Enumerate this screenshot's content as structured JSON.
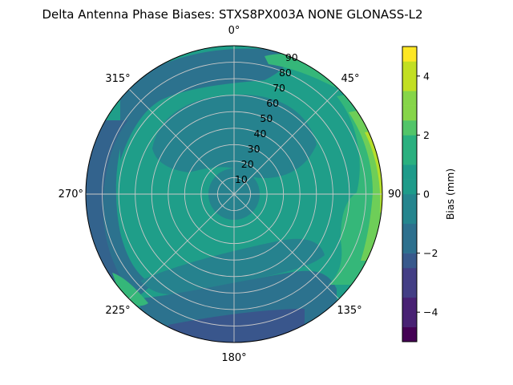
{
  "chart_data": {
    "type": "polar-contour",
    "title": "Delta Antenna Phase Biases: STXS8PX003A     NONE GLONASS-L2",
    "angular_tick_labels": [
      "0°",
      "45°",
      "90°",
      "135°",
      "180°",
      "225°",
      "270°",
      "315°"
    ],
    "radial_tick_labels": [
      "10",
      "20",
      "30",
      "40",
      "50",
      "60",
      "70",
      "80",
      "90"
    ],
    "radial_range": [
      0,
      90
    ],
    "grid": true,
    "colorbar": {
      "label": "Bias (mm)",
      "range": [
        -5,
        5
      ],
      "tick_labels": [
        "−4",
        "−2",
        "0",
        "2",
        "4"
      ],
      "levels": [
        -5,
        -4.5,
        -4,
        -3.5,
        -3,
        -2.5,
        -2,
        -1.5,
        -1,
        -0.5,
        0,
        0.5,
        1,
        1.5,
        2,
        2.5,
        3,
        3.5,
        4,
        4.5,
        5
      ],
      "colormap": "viridis"
    },
    "regions": [
      {
        "name": "background",
        "band": [
          0,
          0.5
        ],
        "color": "#1f9e89"
      },
      {
        "name": "center-ring",
        "band": [
          -0.5,
          0
        ],
        "color": "#26828e"
      },
      {
        "name": "north-mid-ring",
        "band": [
          -0.5,
          0
        ],
        "color": "#26828e"
      },
      {
        "name": "north-outer",
        "band": [
          -1,
          -0.5
        ],
        "color": "#2c728e"
      },
      {
        "name": "west-edge",
        "band": [
          -2,
          -1
        ],
        "color": "#33638d"
      },
      {
        "name": "south-mid-band",
        "band": [
          -0.5,
          0
        ],
        "color": "#26828e"
      },
      {
        "name": "south-outer",
        "band": [
          -1.5,
          -1
        ],
        "color": "#2c728e"
      },
      {
        "name": "south-edge",
        "band": [
          -2.5,
          -1.5
        ],
        "color": "#39568c"
      },
      {
        "name": "east-band",
        "band": [
          1,
          1.5
        ],
        "color": "#35b779"
      },
      {
        "name": "east-edge",
        "band": [
          2,
          3
        ],
        "color": "#6ece58"
      },
      {
        "name": "east-rim",
        "band": [
          3,
          3.5
        ],
        "color": "#b5de2b"
      },
      {
        "name": "southwest-patch",
        "band": [
          1,
          1.5
        ],
        "color": "#35b779"
      }
    ]
  }
}
